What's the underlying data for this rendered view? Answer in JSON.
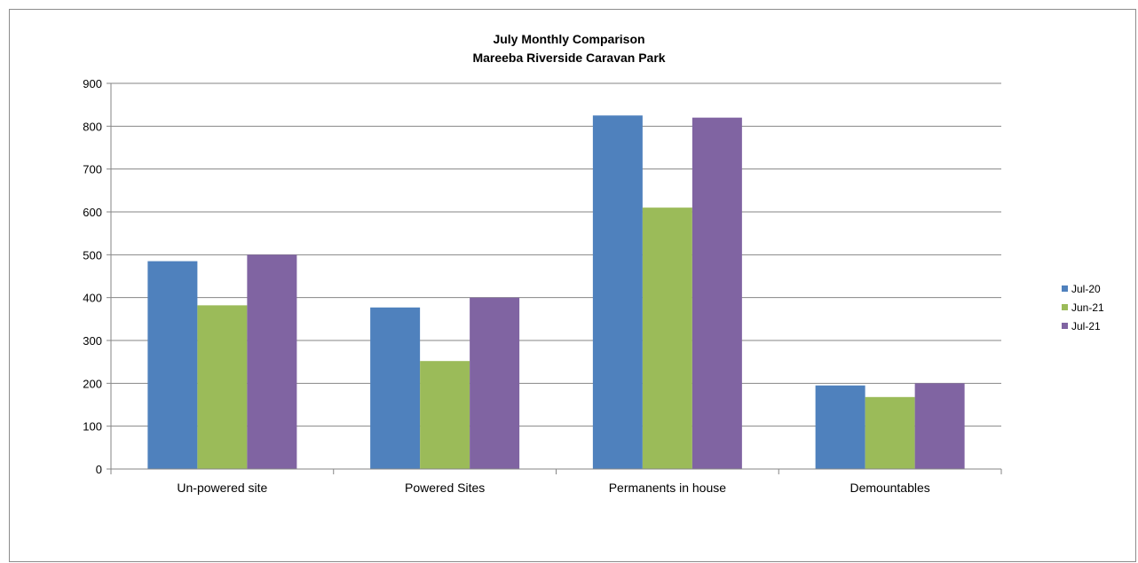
{
  "chart_data": {
    "type": "bar",
    "title": "July Monthly Comparison",
    "subtitle": "Mareeba Riverside Caravan Park",
    "categories": [
      "Un-powered site",
      "Powered Sites",
      "Permanents in house",
      "Demountables"
    ],
    "series": [
      {
        "name": "Jul-20",
        "color": "#4F81BD",
        "values": [
          485,
          377,
          825,
          195
        ]
      },
      {
        "name": "Jun-21",
        "color": "#9BBB59",
        "values": [
          382,
          252,
          610,
          168
        ]
      },
      {
        "name": "Jul-21",
        "color": "#8064A2",
        "values": [
          500,
          400,
          820,
          200
        ]
      }
    ],
    "ylim": [
      0,
      900
    ],
    "yticks": [
      0,
      100,
      200,
      300,
      400,
      500,
      600,
      700,
      800,
      900
    ],
    "grid": true,
    "legend_position": "right"
  }
}
